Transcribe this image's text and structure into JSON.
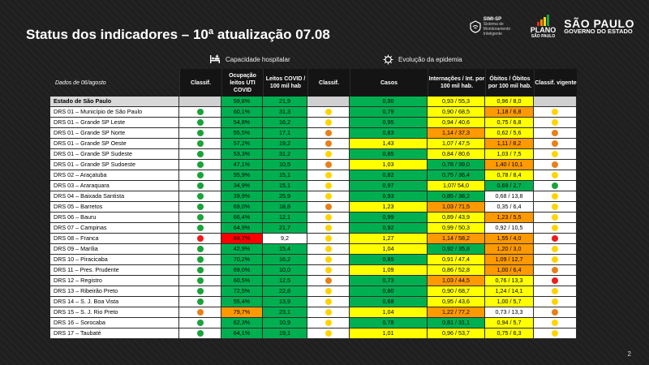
{
  "title": "Status dos indicadores – 10ª atualização 07.08",
  "logos": {
    "simi_name": "SIMI-SP",
    "simi_sub": "Sistema de Monitoramento Inteligente",
    "plano_line1": "PLANO",
    "plano_line2": "SÃO PAULO",
    "sp_line1": "SÃO PAULO",
    "sp_line2": "GOVERNO DO ESTADO"
  },
  "legend": {
    "capacity": "Capacidade hospitalar",
    "evolution": "Evolução da epidemia",
    "capacity_icon": "hospital-bed-icon",
    "evolution_icon": "virus-icon"
  },
  "header": {
    "date": "Dados de 06/agosto",
    "classif1": "Classif.",
    "ocupacao": "Ocupação leitos UTI COVID",
    "leitos": "Leitos COVID / 100 mil hab",
    "classif2": "Classif.",
    "casos": "Casos",
    "internacoes": "Internações / Int. por 100 mil hab.",
    "obitos": "Óbitos / Óbitos por 100 mil hab.",
    "vigente": "Classif. vigente"
  },
  "colors": {
    "green": "#00b050",
    "light_green": "#92d050",
    "yellow": "#ffff00",
    "orange": "#ff9900",
    "red": "#ff0000",
    "dark_orange": "#e8801a",
    "dot_green": "#1aa33a",
    "dot_yellow": "#ffd500",
    "dot_red": "#ee1c1c"
  },
  "rows": [
    {
      "name": "Estado de São Paulo",
      "state": true,
      "ocup": "59,8%",
      "leitos": "21,9",
      "casos": "0,90",
      "intern": "0,93 / 55,3",
      "obitos": "0,96 / 8,0",
      "c1": null,
      "c2": null,
      "cv": null,
      "ocup_c": "green",
      "leitos_c": "green",
      "casos_c": "green",
      "intern_c": "yellow",
      "obitos_c": "yellow"
    },
    {
      "name": "DRS 01 – Município de São Paulo",
      "ocup": "60,1%",
      "leitos": "31,3",
      "casos": "0,79",
      "intern": "0,90 / 68,5",
      "obitos": "1,18 / 6,8",
      "c1": "green",
      "c2": "yellow",
      "cv": "yellow",
      "ocup_c": "green",
      "leitos_c": "green",
      "casos_c": "green",
      "intern_c": "yellow",
      "obitos_c": "orange"
    },
    {
      "name": "DRS 01 – Grande SP Leste",
      "ocup": "54,8%",
      "leitos": "16,2",
      "casos": "0,95",
      "intern": "0,94 / 40,6",
      "obitos": "0,75 / 6,8",
      "c1": "green",
      "c2": "yellow",
      "cv": "yellow",
      "ocup_c": "green",
      "leitos_c": "green",
      "casos_c": "green",
      "intern_c": "yellow",
      "obitos_c": "yellow"
    },
    {
      "name": "DRS 01 – Grande SP Norte",
      "ocup": "55,5%",
      "leitos": "17,1",
      "casos": "0,83",
      "intern": "1,14 / 37,3",
      "obitos": "0,62 / 5,6",
      "c1": "green",
      "c2": "orange",
      "cv": "orange",
      "ocup_c": "green",
      "leitos_c": "green",
      "casos_c": "green",
      "intern_c": "orange",
      "obitos_c": "yellow"
    },
    {
      "name": "DRS 01 – Grande SP Oeste",
      "ocup": "57,2%",
      "leitos": "19,2",
      "casos": "1,43",
      "intern": "1,07 / 47,5",
      "obitos": "1,11 / 8,2",
      "c1": "green",
      "c2": "orange",
      "cv": "orange",
      "ocup_c": "green",
      "leitos_c": "green",
      "casos_c": "yellow",
      "intern_c": "yellow",
      "obitos_c": "orange"
    },
    {
      "name": "DRS 01 – Grande SP Sudeste",
      "ocup": "53,3%",
      "leitos": "31,2",
      "casos": "0,85",
      "intern": "0,84 / 80,6",
      "obitos": "1,03 / 7,5",
      "c1": "green",
      "c2": "yellow",
      "cv": "yellow",
      "ocup_c": "green",
      "leitos_c": "green",
      "casos_c": "green",
      "intern_c": "yellow",
      "obitos_c": "yellow"
    },
    {
      "name": "DRS 01 – Grande SP Sudoeste",
      "ocup": "47,1%",
      "leitos": "10,5",
      "casos": "1,03",
      "intern": "0,78 / 39,0",
      "obitos": "1,40 / 10,1",
      "c1": "green",
      "c2": "orange",
      "cv": "orange",
      "ocup_c": "green",
      "leitos_c": "green",
      "casos_c": "yellow",
      "intern_c": "green",
      "obitos_c": "orange"
    },
    {
      "name": "DRS 02 – Araçatuba",
      "ocup": "55,9%",
      "leitos": "15,1",
      "casos": "0,82",
      "intern": "0,75 / 36,4",
      "obitos": "0,78 / 8,4",
      "c1": "green",
      "c2": "yellow",
      "cv": "yellow",
      "ocup_c": "green",
      "leitos_c": "green",
      "casos_c": "green",
      "intern_c": "green",
      "obitos_c": "yellow"
    },
    {
      "name": "DRS 03 – Araraquara",
      "ocup": "34,9%",
      "leitos": "15,1",
      "casos": "0,97",
      "intern": "1,07/ 54,0",
      "obitos": "0,69 / 2,7",
      "c1": "green",
      "c2": "yellow",
      "cv": "green",
      "ocup_c": "green",
      "leitos_c": "green",
      "casos_c": "green",
      "intern_c": "yellow",
      "obitos_c": "green"
    },
    {
      "name": "DRS 04 – Baixada Santista",
      "ocup": "39,9%",
      "leitos": "25,9",
      "casos": "0,93",
      "intern": "0,85 / 38,2",
      "obitos": "0,68 / 13,8",
      "c1": "green",
      "c2": "yellow",
      "cv": "yellow",
      "ocup_c": "green",
      "leitos_c": "green",
      "casos_c": "green",
      "intern_c": "green",
      "obitos_c": "blank"
    },
    {
      "name": "DRS 05 – Barretos",
      "ocup": "69,0%",
      "leitos": "18,8",
      "casos": "1,23",
      "intern": "1,03 / 71,5",
      "obitos": "0,35 / 6,4",
      "c1": "green",
      "c2": "orange",
      "cv": "yellow",
      "ocup_c": "green",
      "leitos_c": "green",
      "casos_c": "yellow",
      "intern_c": "orange",
      "obitos_c": "blank"
    },
    {
      "name": "DRS 06 – Bauru",
      "ocup": "66,4%",
      "leitos": "12,1",
      "casos": "0,99",
      "intern": "0,89 / 43,9",
      "obitos": "1,23 / 5,5",
      "c1": "green",
      "c2": "yellow",
      "cv": "yellow",
      "ocup_c": "green",
      "leitos_c": "green",
      "casos_c": "green",
      "intern_c": "yellow",
      "obitos_c": "orange"
    },
    {
      "name": "DRS 07 – Campinas",
      "ocup": "64,9%",
      "leitos": "21,7",
      "casos": "0,92",
      "intern": "0,99 / 50,3",
      "obitos": "0,92 / 10,5",
      "c1": "green",
      "c2": "yellow",
      "cv": "yellow",
      "ocup_c": "green",
      "leitos_c": "green",
      "casos_c": "green",
      "intern_c": "yellow",
      "obitos_c": "blank"
    },
    {
      "name": "DRS 08 – Franca",
      "ocup": "84,7%",
      "leitos": "9,2",
      "casos": "1,27",
      "intern": "1,14 / 58,2",
      "obitos": "1,55 / 4,0",
      "c1": "red",
      "c2": "yellow",
      "cv": "red",
      "ocup_c": "red",
      "leitos_c": "blank",
      "casos_c": "yellow",
      "intern_c": "orange",
      "obitos_c": "orange"
    },
    {
      "name": "DRS 09 – Marília",
      "ocup": "42,9%",
      "leitos": "15,4",
      "casos": "1,04",
      "intern": "0,92 / 35,8",
      "obitos": "1,20 / 3,0",
      "c1": "green",
      "c2": "yellow",
      "cv": "yellow",
      "ocup_c": "green",
      "leitos_c": "green",
      "casos_c": "yellow",
      "intern_c": "green",
      "obitos_c": "orange"
    },
    {
      "name": "DRS 10 – Piracicaba",
      "ocup": "70,2%",
      "leitos": "16,2",
      "casos": "0,85",
      "intern": "0,91 / 47,4",
      "obitos": "1,09 / 12,7",
      "c1": "green",
      "c2": "yellow",
      "cv": "yellow",
      "ocup_c": "green",
      "leitos_c": "green",
      "casos_c": "green",
      "intern_c": "yellow",
      "obitos_c": "orange"
    },
    {
      "name": "DRS 11 – Pres. Prudente",
      "ocup": "69,0%",
      "leitos": "10,0",
      "casos": "1,09",
      "intern": "0,86 / 52,8",
      "obitos": "1,00 / 6,4",
      "c1": "green",
      "c2": "yellow",
      "cv": "orange",
      "ocup_c": "green",
      "leitos_c": "green",
      "casos_c": "yellow",
      "intern_c": "yellow",
      "obitos_c": "orange"
    },
    {
      "name": "DRS 12 – Registro",
      "ocup": "60,5%",
      "leitos": "12,5",
      "casos": "0,73",
      "intern": "1,03 / 44,5",
      "obitos": "0,76 / 13,3",
      "c1": "green",
      "c2": "orange",
      "cv": "red",
      "ocup_c": "green",
      "leitos_c": "green",
      "casos_c": "green",
      "intern_c": "orange",
      "obitos_c": "yellow"
    },
    {
      "name": "DRS 13 – Ribeirão Preto",
      "ocup": "72,5%",
      "leitos": "22,8",
      "casos": "0,80",
      "intern": "0,90 / 68,7",
      "obitos": "1,24 / 14,1",
      "c1": "green",
      "c2": "yellow",
      "cv": "yellow",
      "ocup_c": "green",
      "leitos_c": "green",
      "casos_c": "green",
      "intern_c": "yellow",
      "obitos_c": "yellow"
    },
    {
      "name": "DRS 14 – S. J. Boa Vista",
      "ocup": "55,4%",
      "leitos": "13,9",
      "casos": "0,68",
      "intern": "0,95 / 43,6",
      "obitos": "1,00 / 5,7",
      "c1": "green",
      "c2": "yellow",
      "cv": "yellow",
      "ocup_c": "green",
      "leitos_c": "green",
      "casos_c": "green",
      "intern_c": "yellow",
      "obitos_c": "yellow"
    },
    {
      "name": "DRS 15 – S. J. Rio Preto",
      "ocup": "79,7%",
      "leitos": "23,1",
      "casos": "1,04",
      "intern": "1,22 / 77,2",
      "obitos": "0,73 / 13,3",
      "c1": "orange",
      "c2": "yellow",
      "cv": "orange",
      "ocup_c": "orange",
      "leitos_c": "green",
      "casos_c": "yellow",
      "intern_c": "orange",
      "obitos_c": "blank"
    },
    {
      "name": "DRS 16 – Sorocaba",
      "ocup": "62,3%",
      "leitos": "10,9",
      "casos": "0,78",
      "intern": "0,81 / 31,1",
      "obitos": "0,94 / 5,7",
      "c1": "green",
      "c2": "yellow",
      "cv": "yellow",
      "ocup_c": "green",
      "leitos_c": "green",
      "casos_c": "green",
      "intern_c": "green",
      "obitos_c": "yellow"
    },
    {
      "name": "DRS 17 – Taubaté",
      "ocup": "64,1%",
      "leitos": "19,1",
      "casos": "1,01",
      "intern": "0,96 / 53,7",
      "obitos": "0,75 / 6,3",
      "c1": "green",
      "c2": "yellow",
      "cv": "yellow",
      "ocup_c": "green",
      "leitos_c": "green",
      "casos_c": "yellow",
      "intern_c": "yellow",
      "obitos_c": "yellow"
    }
  ],
  "page_number": "2"
}
